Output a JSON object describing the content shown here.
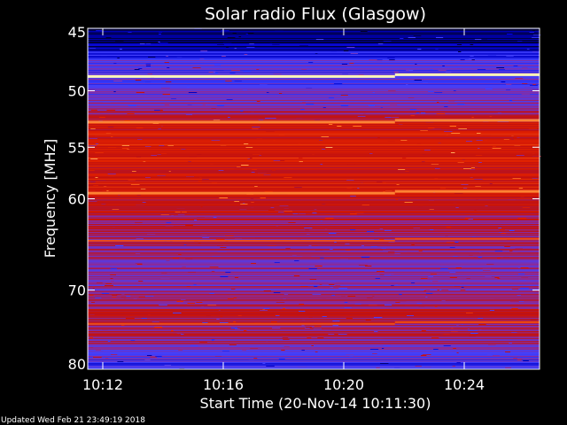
{
  "chart_data": {
    "type": "heatmap",
    "title": "Solar radio Flux (Glasgow)",
    "xlabel": "Start Time (20-Nov-14 10:11:30)",
    "ylabel": "Frequency [MHz]",
    "x_tick_labels": [
      "10:12",
      "10:16",
      "10:20",
      "10:24"
    ],
    "x_tick_minutes": [
      12,
      16,
      20,
      24
    ],
    "x_range_minutes": [
      11.5,
      26.5
    ],
    "y_ticks": [
      45,
      50,
      55,
      60,
      70,
      80
    ],
    "ylim": [
      45,
      80
    ],
    "y_scale": "log",
    "colormap": [
      "#000030",
      "#0000c8",
      "#4040ff",
      "#8a2a9a",
      "#c01010",
      "#e02000",
      "#ff8030",
      "#ffffc0"
    ],
    "intense_bands": [
      {
        "freq_mhz": 48.7,
        "level": "max"
      },
      {
        "freq_mhz": 52.6,
        "level": "high"
      },
      {
        "freq_mhz": 59.3,
        "level": "high"
      },
      {
        "freq_mhz": 64.3,
        "level": "medium"
      },
      {
        "freq_mhz": 74.0,
        "level": "medium"
      }
    ],
    "step_change_minute": 21.7,
    "background_profile": [
      {
        "freq_mhz": 45.0,
        "level": 0.0
      },
      {
        "freq_mhz": 46.5,
        "level": 0.1
      },
      {
        "freq_mhz": 47.5,
        "level": 0.3
      },
      {
        "freq_mhz": 50.0,
        "level": 0.35
      },
      {
        "freq_mhz": 51.5,
        "level": 0.4
      },
      {
        "freq_mhz": 52.8,
        "level": 0.62
      },
      {
        "freq_mhz": 55.0,
        "level": 0.66
      },
      {
        "freq_mhz": 60.0,
        "level": 0.62
      },
      {
        "freq_mhz": 62.5,
        "level": 0.48
      },
      {
        "freq_mhz": 66.0,
        "level": 0.44
      },
      {
        "freq_mhz": 70.0,
        "level": 0.4
      },
      {
        "freq_mhz": 72.0,
        "level": 0.52
      },
      {
        "freq_mhz": 76.0,
        "level": 0.48
      },
      {
        "freq_mhz": 78.5,
        "level": 0.34
      },
      {
        "freq_mhz": 80.0,
        "level": 0.24
      }
    ]
  },
  "footer": {
    "updated": "Updated Wed Feb 21 23:49:19 2018"
  },
  "colors": {
    "background": "#000000",
    "axes": "#ffffff"
  }
}
